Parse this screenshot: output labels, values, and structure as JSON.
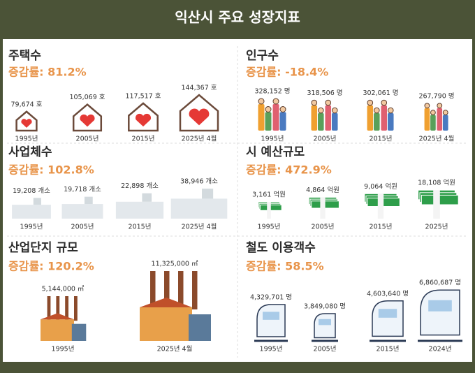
{
  "header": {
    "title": "익산시 주요 성장지표"
  },
  "sections": [
    {
      "title": "주택수",
      "growth": "증감률: 81.2%",
      "items": [
        {
          "value": "79,674 호",
          "year": "1995년"
        },
        {
          "value": "105,069 호",
          "year": "2005년"
        },
        {
          "value": "117,517 호",
          "year": "2015년"
        },
        {
          "value": "144,367 호",
          "year": "2025년 4월"
        }
      ]
    },
    {
      "title": "인구수",
      "growth": "증감률: -18.4%",
      "items": [
        {
          "value": "328,152 명",
          "year": "1995년"
        },
        {
          "value": "318,506 명",
          "year": "2005년"
        },
        {
          "value": "302,061 명",
          "year": "2015년"
        },
        {
          "value": "267,790 명",
          "year": "2025년 4월"
        }
      ]
    },
    {
      "title": "사업체수",
      "growth": "증감률: 102.8%",
      "items": [
        {
          "value": "19,208 개소",
          "year": "1995년"
        },
        {
          "value": "19,718 개소",
          "year": "2005년"
        },
        {
          "value": "22,898 개소",
          "year": "2015년"
        },
        {
          "value": "38,946 개소",
          "year": "2025년 4월"
        }
      ]
    },
    {
      "title": "시 예산규모",
      "growth": "증감률: 472.9%",
      "items": [
        {
          "value": "3,161 억원",
          "year": "1995년"
        },
        {
          "value": "4,864 억원",
          "year": "2005년"
        },
        {
          "value": "9,064 억원",
          "year": "2015년"
        },
        {
          "value": "18,108 억원",
          "year": "2025년"
        }
      ]
    },
    {
      "title": "산업단지 규모",
      "growth": "증감률: 120.2%",
      "items": [
        {
          "value": "5,144,000 ㎡",
          "year": "1995년"
        },
        {
          "value": "11,325,000 ㎡",
          "year": "2025년 4월"
        }
      ]
    },
    {
      "title": "철도 이용객수",
      "growth": "증감률: 58.5%",
      "items": [
        {
          "value": "4,329,701 명",
          "year": "1995년"
        },
        {
          "value": "3,849,080 명",
          "year": "2005년"
        },
        {
          "value": "4,603,640 명",
          "year": "2015년"
        },
        {
          "value": "6,860,687 명",
          "year": "2024년"
        }
      ]
    }
  ]
}
